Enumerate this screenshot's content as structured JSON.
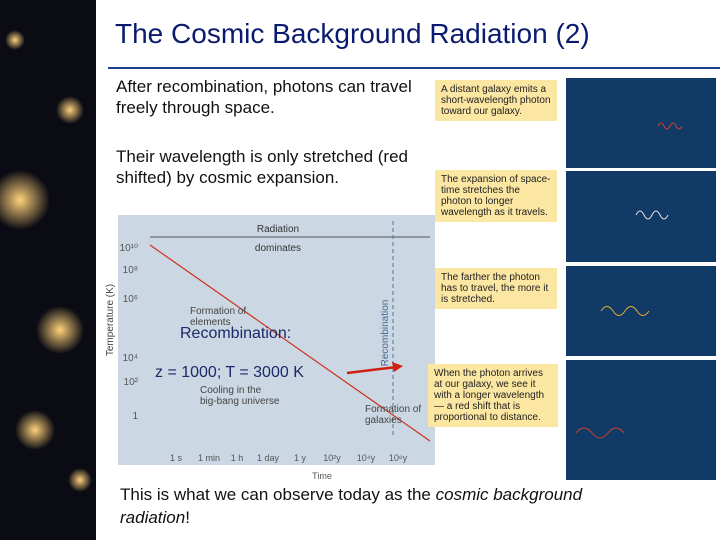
{
  "title": "The Cosmic Background Radiation (2)",
  "paragraphs": [
    "After recombination, photons can travel freely through space.",
    "Their wavelength is only stretched (red shifted) by cosmic expansion."
  ],
  "figure": {
    "era_label": [
      "Radiation",
      "dominates"
    ],
    "y_axis_title": "Temperature (K)",
    "y_labels": [
      "10¹⁰",
      "10⁸",
      "10⁶",
      "10⁴",
      "10²",
      "1"
    ],
    "x_axis_title": "Time",
    "x_labels": [
      "1 s",
      "1 min",
      "1 h",
      "1 day",
      "1 y",
      "10²y",
      "10⁴y",
      "10⁶y"
    ],
    "recombination_line": "Recombination",
    "notes": [
      [
        "Formation of",
        "elements"
      ],
      [
        "Cooling in the",
        "big-bang universe"
      ],
      [
        "Formation of",
        "galaxies"
      ]
    ]
  },
  "annotation": [
    "Recombination:",
    "z = 1000; T = 3000 K"
  ],
  "panels": [
    {
      "caption": "A distant galaxy emits a short-wavelength photon toward our galaxy."
    },
    {
      "caption": "The expansion of space-time stretches the photon to longer wavelength as it travels."
    },
    {
      "caption": "The farther the photon has to travel, the more it is stretched."
    },
    {
      "caption": "When the photon arrives at our galaxy, we see it with a longer wavelength — a red shift that is proportional to distance."
    }
  ],
  "footer": {
    "before": "This is what we can observe today as the ",
    "emphasis": "cosmic background radiation",
    "after": "!"
  }
}
